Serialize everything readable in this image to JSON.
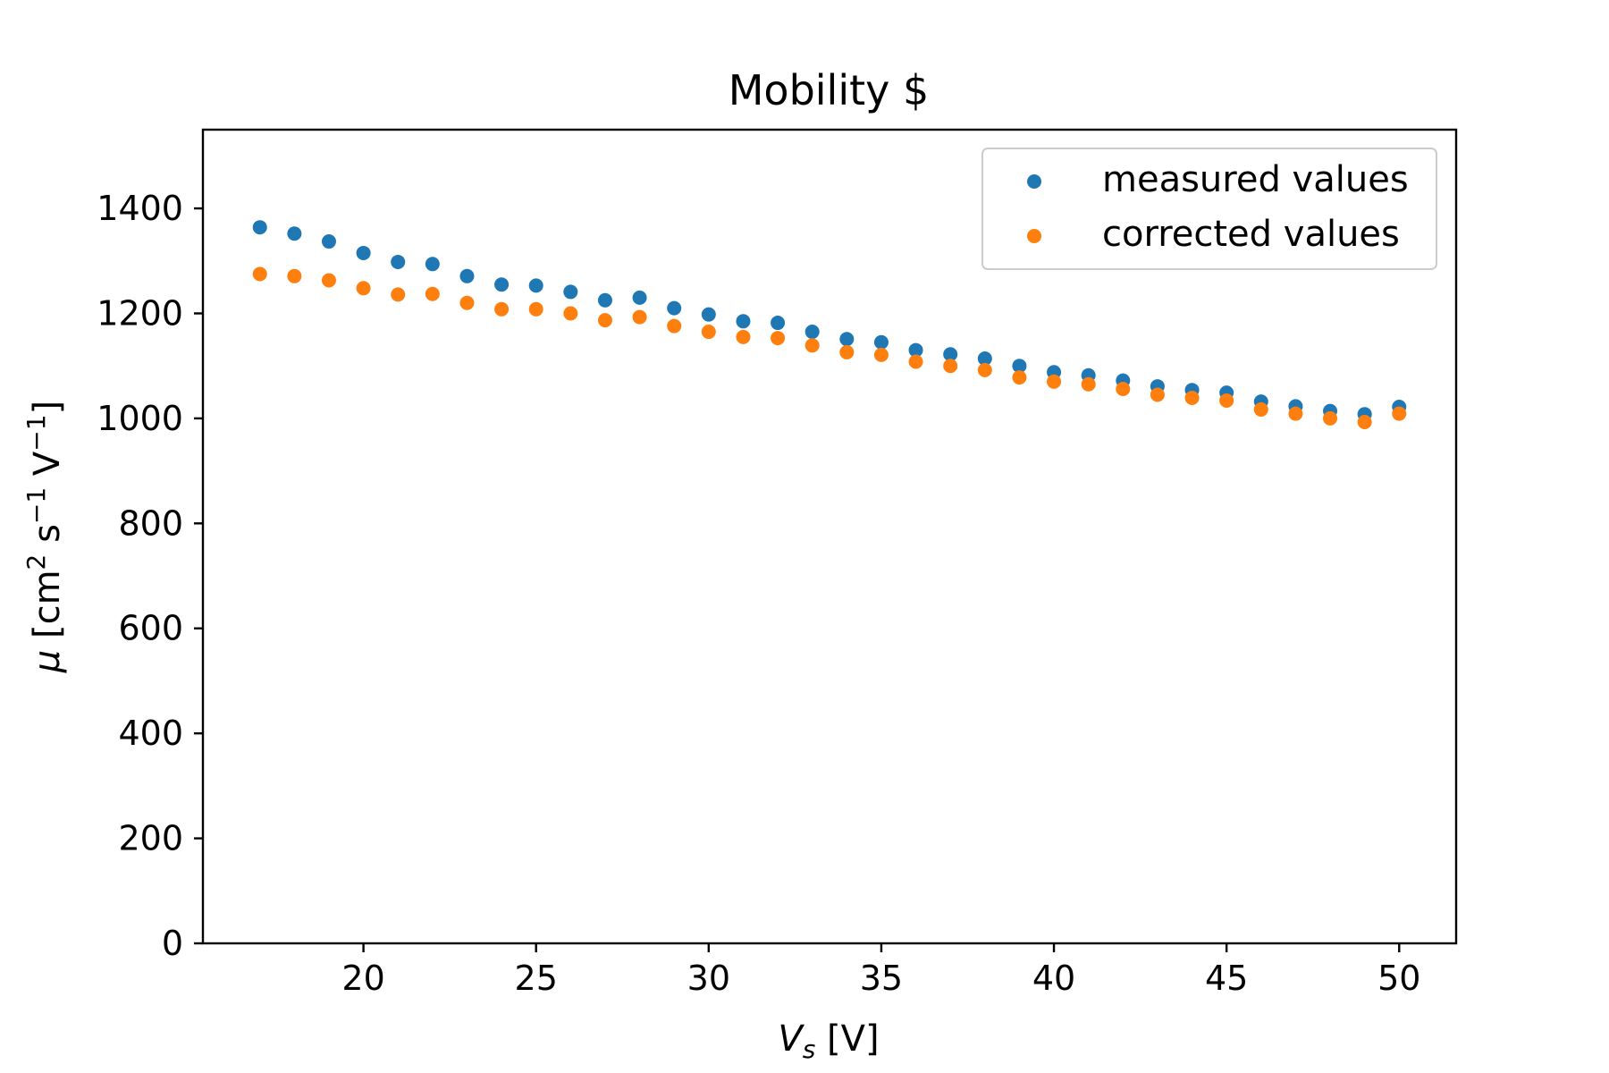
{
  "chart_data": {
    "type": "scatter",
    "title": "Mobility $",
    "xlabel": {
      "main": "V",
      "sub": "s",
      "unit": " [V]"
    },
    "ylabel": {
      "mu": "μ",
      "open": " [cm",
      "sq": "2",
      "mid": " s",
      "exp1": "−1",
      "volt": " V",
      "exp2": "−1",
      "close": "]"
    },
    "xlim": [
      15.35,
      51.65
    ],
    "ylim": [
      0,
      1550
    ],
    "xticks": [
      20,
      25,
      30,
      35,
      40,
      45,
      50
    ],
    "yticks": [
      0,
      200,
      400,
      600,
      800,
      1000,
      1200,
      1400
    ],
    "grid": false,
    "legend_position": "top-right",
    "x": [
      17,
      18,
      19,
      20,
      21,
      22,
      23,
      24,
      25,
      26,
      27,
      28,
      29,
      30,
      31,
      32,
      33,
      34,
      35,
      36,
      37,
      38,
      39,
      40,
      41,
      42,
      43,
      44,
      45,
      46,
      47,
      48,
      49,
      50
    ],
    "series": [
      {
        "name": "measured values",
        "color": "#1f77b4",
        "values": [
          1364,
          1352,
          1337,
          1315,
          1298,
          1294,
          1271,
          1255,
          1253,
          1241,
          1225,
          1230,
          1210,
          1198,
          1185,
          1182,
          1165,
          1151,
          1145,
          1130,
          1122,
          1114,
          1100,
          1088,
          1082,
          1072,
          1061,
          1054,
          1049,
          1032,
          1023,
          1014,
          1008,
          1022
        ]
      },
      {
        "name": "corrected values",
        "color": "#ff7f0e",
        "values": [
          1275,
          1271,
          1263,
          1248,
          1236,
          1237,
          1220,
          1208,
          1208,
          1200,
          1187,
          1193,
          1176,
          1165,
          1155,
          1153,
          1139,
          1126,
          1121,
          1108,
          1100,
          1092,
          1078,
          1070,
          1065,
          1056,
          1045,
          1039,
          1034,
          1017,
          1009,
          1000,
          993,
          1009
        ]
      }
    ]
  }
}
